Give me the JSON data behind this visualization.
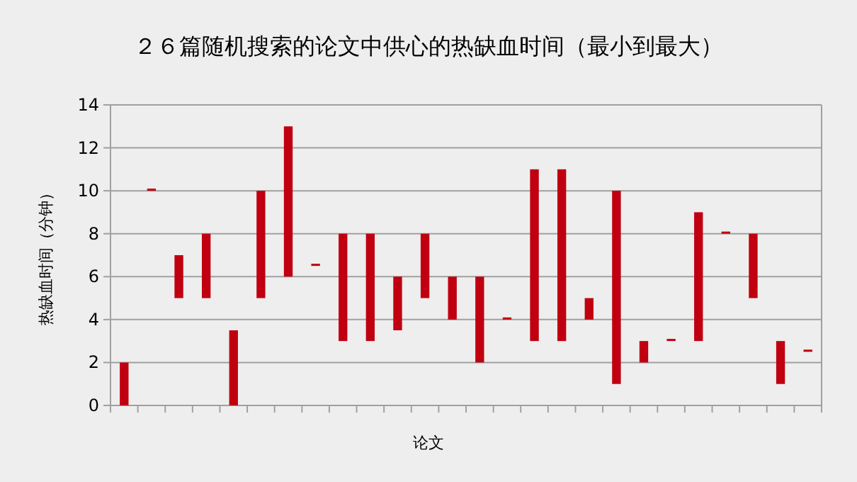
{
  "chart_data": {
    "type": "bar",
    "title": "２６篇随机搜索的论文中供心的热缺血时间（最小到最大）",
    "xlabel": "论文",
    "ylabel": "热缺血时间（分钟）",
    "categories": [
      null,
      null,
      null,
      null,
      null,
      null,
      null,
      null,
      null,
      null,
      null,
      null,
      null,
      null,
      null,
      null,
      null,
      null,
      null,
      null,
      null,
      null,
      null,
      null,
      null,
      null
    ],
    "base": [
      0,
      10,
      5,
      5,
      0,
      5,
      6,
      6.5,
      3,
      3,
      3.5,
      5,
      4,
      2,
      4,
      3,
      3,
      4,
      1,
      2,
      3,
      3,
      8,
      5,
      1,
      2.5
    ],
    "values": [
      2,
      0.1,
      2,
      3,
      3.5,
      5,
      7,
      0.1,
      5,
      5,
      2.5,
      3,
      2,
      4,
      0.1,
      8,
      8,
      1,
      9,
      1,
      0.1,
      6,
      0.1,
      3,
      2,
      0.1
    ],
    "color": "#c00010",
    "ylim": [
      0,
      14
    ],
    "yticks": [
      0,
      2,
      4,
      6,
      8,
      10,
      12,
      14
    ],
    "grid": "y"
  }
}
